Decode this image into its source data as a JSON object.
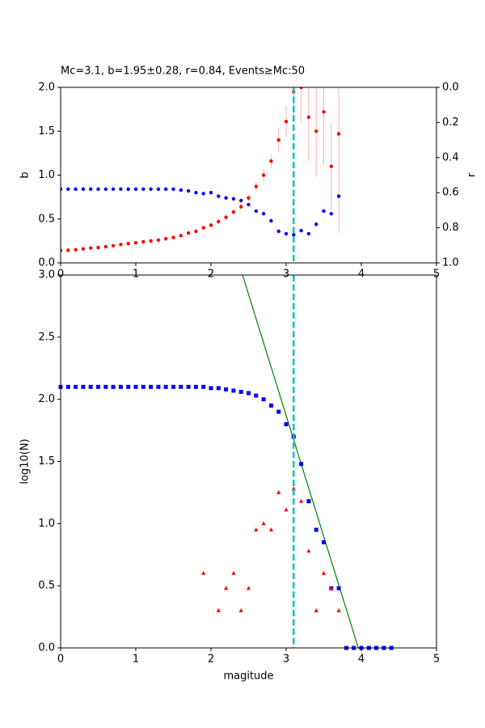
{
  "chart_data": [
    {
      "type": "scatter",
      "title": "Mc=3.1, b=1.95±0.28, r=0.84, Events≥Mc:50",
      "ylabel": "b",
      "y2label": "r",
      "x": [
        0,
        0.1,
        0.2,
        0.3,
        0.4,
        0.5,
        0.6,
        0.7,
        0.8,
        0.9,
        1.0,
        1.1,
        1.2,
        1.3,
        1.4,
        1.5,
        1.6,
        1.7,
        1.8,
        1.9,
        2.0,
        2.1,
        2.2,
        2.3,
        2.4,
        2.5,
        2.6,
        2.7,
        2.8,
        2.9,
        3.0,
        3.1,
        3.2,
        3.3,
        3.4,
        3.5,
        3.6,
        3.7
      ],
      "series": [
        {
          "color": "#ff0000",
          "errors_color": "#f7b0b0",
          "values": [
            0.14,
            0.145,
            0.15,
            0.16,
            0.17,
            0.175,
            0.185,
            0.195,
            0.21,
            0.22,
            0.23,
            0.24,
            0.25,
            0.26,
            0.275,
            0.29,
            0.31,
            0.34,
            0.36,
            0.4,
            0.43,
            0.47,
            0.52,
            0.58,
            0.64,
            0.74,
            0.87,
            1.0,
            1.16,
            1.4,
            1.61,
            1.95,
            2.0,
            1.66,
            1.5,
            1.72,
            1.1,
            1.47
          ],
          "errors": [
            0.01,
            0.01,
            0.01,
            0.01,
            0.01,
            0.01,
            0.01,
            0.01,
            0.01,
            0.01,
            0.01,
            0.01,
            0.01,
            0.01,
            0.01,
            0.01,
            0.01,
            0.02,
            0.02,
            0.02,
            0.02,
            0.03,
            0.03,
            0.03,
            0.03,
            0.04,
            0.05,
            0.07,
            0.08,
            0.13,
            0.18,
            0.28,
            0.4,
            0.5,
            0.52,
            0.6,
            0.5,
            1.13
          ]
        },
        {
          "color": "#0000ff",
          "axis": "y2",
          "values": [
            0.58,
            0.58,
            0.58,
            0.58,
            0.58,
            0.58,
            0.58,
            0.58,
            0.58,
            0.58,
            0.58,
            0.58,
            0.58,
            0.58,
            0.58,
            0.58,
            0.585,
            0.59,
            0.6,
            0.605,
            0.6,
            0.62,
            0.63,
            0.635,
            0.645,
            0.668,
            0.705,
            0.72,
            0.76,
            0.82,
            0.834,
            0.84,
            0.816,
            0.834,
            0.78,
            0.705,
            0.72,
            0.62
          ]
        }
      ],
      "mc": 3.1,
      "mc_color": "#17bfbf",
      "xlim": [
        0,
        5
      ],
      "xticks": [
        0,
        1,
        2,
        3,
        4,
        5
      ],
      "ylim": [
        0,
        2
      ],
      "yticks": [
        {
          "value": 0,
          "label": "0.0"
        },
        {
          "value": 0.5,
          "label": "0.5"
        },
        {
          "value": 1,
          "label": "1.0"
        },
        {
          "value": 1.5,
          "label": "1.5"
        },
        {
          "value": 2,
          "label": "2.0"
        }
      ],
      "y2lim": [
        1,
        0
      ],
      "y2ticks": [
        {
          "value": 0,
          "label": "0.0"
        },
        0.2,
        0.4,
        0.6,
        0.8,
        {
          "value": 1,
          "label": "1.0"
        }
      ]
    },
    {
      "type": "scatter",
      "xlabel": "magitude",
      "ylabel": "log10(N)",
      "series": [
        {
          "marker": "square",
          "color": "#0000ff",
          "x": [
            0,
            0.1,
            0.2,
            0.3,
            0.4,
            0.5,
            0.6,
            0.7,
            0.8,
            0.9,
            1.0,
            1.1,
            1.2,
            1.3,
            1.4,
            1.5,
            1.6,
            1.7,
            1.8,
            1.9,
            2.0,
            2.1,
            2.2,
            2.3,
            2.4,
            2.5,
            2.6,
            2.7,
            2.8,
            2.9,
            3.0,
            3.1,
            3.2,
            3.3,
            3.4,
            3.5,
            3.6,
            3.7,
            3.8,
            3.9,
            4.0,
            4.1,
            4.2,
            4.3,
            4.4
          ],
          "values": [
            2.1,
            2.1,
            2.1,
            2.1,
            2.1,
            2.1,
            2.1,
            2.1,
            2.1,
            2.1,
            2.1,
            2.1,
            2.1,
            2.1,
            2.1,
            2.1,
            2.1,
            2.1,
            2.1,
            2.1,
            2.09,
            2.09,
            2.08,
            2.07,
            2.06,
            2.05,
            2.03,
            2.0,
            1.95,
            1.9,
            1.8,
            1.7,
            1.48,
            1.18,
            0.95,
            0.85,
            0.48,
            0.48,
            0,
            0,
            0,
            0,
            0,
            0,
            0
          ]
        },
        {
          "marker": "triangle",
          "color": "#ff0000",
          "x": [
            1.9,
            2.1,
            2.2,
            2.3,
            2.4,
            2.5,
            2.6,
            2.7,
            2.8,
            2.9,
            3.0,
            3.1,
            3.2,
            3.3,
            3.4,
            3.5,
            3.6,
            3.7
          ],
          "values": [
            0.6,
            0.3,
            0.48,
            0.6,
            0.3,
            0.48,
            0.95,
            1.0,
            0.95,
            1.25,
            1.11,
            1.28,
            1.18,
            0.78,
            0.3,
            0.6,
            0.48,
            0.3
          ]
        }
      ],
      "fit": {
        "color": "#008000",
        "x": [
          2.42,
          3.96
        ],
        "values": [
          3.0,
          0.0
        ]
      },
      "mc": 3.1,
      "mc_color": "#17bfbf",
      "xlim": [
        0,
        5
      ],
      "xticks": [
        0,
        1,
        2,
        3,
        4,
        5
      ],
      "ylim": [
        0,
        3
      ],
      "yticks": [
        {
          "value": 0,
          "label": "0.0"
        },
        {
          "value": 0.5,
          "label": "0.5"
        },
        {
          "value": 1,
          "label": "1.0"
        },
        {
          "value": 1.5,
          "label": "1.5"
        },
        {
          "value": 2,
          "label": "2.0"
        },
        {
          "value": 2.5,
          "label": "2.5"
        },
        {
          "value": 3,
          "label": "3.0"
        }
      ]
    }
  ]
}
